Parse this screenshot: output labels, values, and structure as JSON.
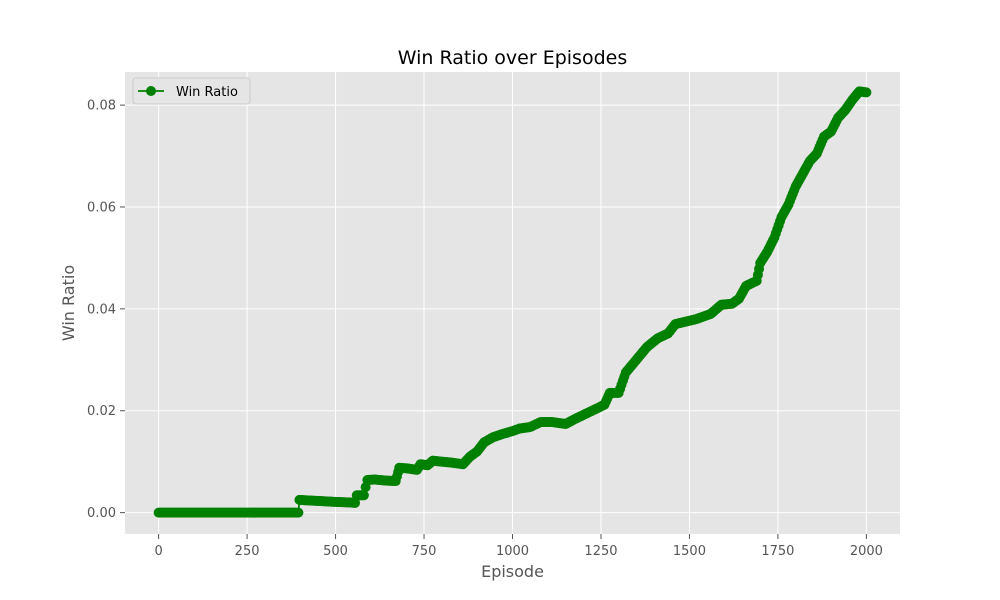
{
  "chart_data": {
    "type": "line",
    "title": "Win Ratio over Episodes",
    "xlabel": "Episode",
    "ylabel": "Win Ratio",
    "xlim": [
      -95,
      2095
    ],
    "ylim": [
      -0.0042,
      0.0865
    ],
    "x_ticks": [
      0,
      250,
      500,
      750,
      1000,
      1250,
      1500,
      1750,
      2000
    ],
    "x_tick_labels": [
      "0",
      "250",
      "500",
      "750",
      "1000",
      "1250",
      "1500",
      "1750",
      "2000"
    ],
    "y_ticks": [
      0.0,
      0.02,
      0.04,
      0.06,
      0.08
    ],
    "y_tick_labels": [
      "0.00",
      "0.02",
      "0.04",
      "0.06",
      "0.08"
    ],
    "grid": true,
    "legend_position": "upper-left",
    "marker": "circle",
    "colors": {
      "series": "#008000",
      "plot_background": "#e5e5e5",
      "grid": "#ffffff",
      "axis_text": "#555555",
      "title_text": "#000000"
    },
    "series": [
      {
        "name": "Win Ratio",
        "points": [
          [
            0,
            0.0
          ],
          [
            50,
            0.0
          ],
          [
            100,
            0.0
          ],
          [
            150,
            0.0
          ],
          [
            200,
            0.0
          ],
          [
            250,
            0.0
          ],
          [
            300,
            0.0
          ],
          [
            350,
            0.0
          ],
          [
            395,
            0.0
          ],
          [
            398,
            0.0025
          ],
          [
            420,
            0.0024
          ],
          [
            450,
            0.0023
          ],
          [
            500,
            0.0021
          ],
          [
            540,
            0.002
          ],
          [
            555,
            0.0019
          ],
          [
            560,
            0.0034
          ],
          [
            580,
            0.0034
          ],
          [
            585,
            0.005
          ],
          [
            590,
            0.0064
          ],
          [
            610,
            0.0065
          ],
          [
            640,
            0.0063
          ],
          [
            670,
            0.0062
          ],
          [
            680,
            0.0088
          ],
          [
            700,
            0.0087
          ],
          [
            730,
            0.0084
          ],
          [
            740,
            0.0095
          ],
          [
            760,
            0.0093
          ],
          [
            775,
            0.0102
          ],
          [
            800,
            0.01
          ],
          [
            830,
            0.0098
          ],
          [
            860,
            0.0095
          ],
          [
            880,
            0.011
          ],
          [
            900,
            0.012
          ],
          [
            920,
            0.0138
          ],
          [
            945,
            0.0148
          ],
          [
            975,
            0.0155
          ],
          [
            1000,
            0.016
          ],
          [
            1020,
            0.0165
          ],
          [
            1050,
            0.0168
          ],
          [
            1080,
            0.0178
          ],
          [
            1110,
            0.0178
          ],
          [
            1150,
            0.0174
          ],
          [
            1180,
            0.0185
          ],
          [
            1210,
            0.0195
          ],
          [
            1240,
            0.0205
          ],
          [
            1260,
            0.0212
          ],
          [
            1275,
            0.0235
          ],
          [
            1300,
            0.0235
          ],
          [
            1320,
            0.0275
          ],
          [
            1350,
            0.03
          ],
          [
            1380,
            0.0325
          ],
          [
            1410,
            0.0342
          ],
          [
            1440,
            0.0352
          ],
          [
            1460,
            0.037
          ],
          [
            1490,
            0.0375
          ],
          [
            1520,
            0.038
          ],
          [
            1560,
            0.039
          ],
          [
            1590,
            0.0408
          ],
          [
            1620,
            0.041
          ],
          [
            1640,
            0.042
          ],
          [
            1660,
            0.0445
          ],
          [
            1690,
            0.0455
          ],
          [
            1700,
            0.049
          ],
          [
            1720,
            0.0512
          ],
          [
            1740,
            0.054
          ],
          [
            1760,
            0.058
          ],
          [
            1780,
            0.0605
          ],
          [
            1800,
            0.064
          ],
          [
            1820,
            0.0665
          ],
          [
            1840,
            0.069
          ],
          [
            1860,
            0.0705
          ],
          [
            1880,
            0.0738
          ],
          [
            1900,
            0.0748
          ],
          [
            1920,
            0.0775
          ],
          [
            1940,
            0.079
          ],
          [
            1960,
            0.081
          ],
          [
            1980,
            0.0827
          ],
          [
            2000,
            0.0825
          ]
        ]
      }
    ]
  }
}
